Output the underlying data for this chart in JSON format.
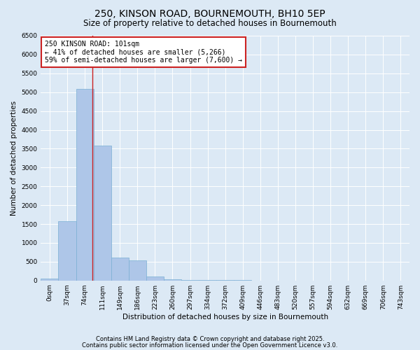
{
  "title": "250, KINSON ROAD, BOURNEMOUTH, BH10 5EP",
  "subtitle": "Size of property relative to detached houses in Bournemouth",
  "xlabel": "Distribution of detached houses by size in Bournemouth",
  "ylabel": "Number of detached properties",
  "bins": [
    "0sqm",
    "37sqm",
    "74sqm",
    "111sqm",
    "149sqm",
    "186sqm",
    "223sqm",
    "260sqm",
    "297sqm",
    "334sqm",
    "372sqm",
    "409sqm",
    "446sqm",
    "483sqm",
    "520sqm",
    "557sqm",
    "594sqm",
    "632sqm",
    "669sqm",
    "706sqm",
    "743sqm"
  ],
  "values": [
    50,
    1580,
    5080,
    3580,
    600,
    540,
    100,
    30,
    20,
    10,
    8,
    5,
    3,
    2,
    1,
    1,
    0,
    0,
    0,
    0,
    0
  ],
  "bar_color": "#aec6e8",
  "bar_edge_color": "#7aafd4",
  "vline_x": 2.43,
  "vline_color": "#cc2222",
  "annotation_text": "250 KINSON ROAD: 101sqm\n← 41% of detached houses are smaller (5,266)\n59% of semi-detached houses are larger (7,600) →",
  "annotation_box_color": "#ffffff",
  "annotation_box_edgecolor": "#cc2222",
  "ylim": [
    0,
    6500
  ],
  "yticks": [
    0,
    500,
    1000,
    1500,
    2000,
    2500,
    3000,
    3500,
    4000,
    4500,
    5000,
    5500,
    6000,
    6500
  ],
  "bg_color": "#dce9f5",
  "footer_text1": "Contains HM Land Registry data © Crown copyright and database right 2025.",
  "footer_text2": "Contains public sector information licensed under the Open Government Licence v3.0.",
  "title_fontsize": 10,
  "subtitle_fontsize": 8.5,
  "label_fontsize": 7.5,
  "tick_fontsize": 6.5,
  "annotation_fontsize": 7,
  "footer_fontsize": 6
}
